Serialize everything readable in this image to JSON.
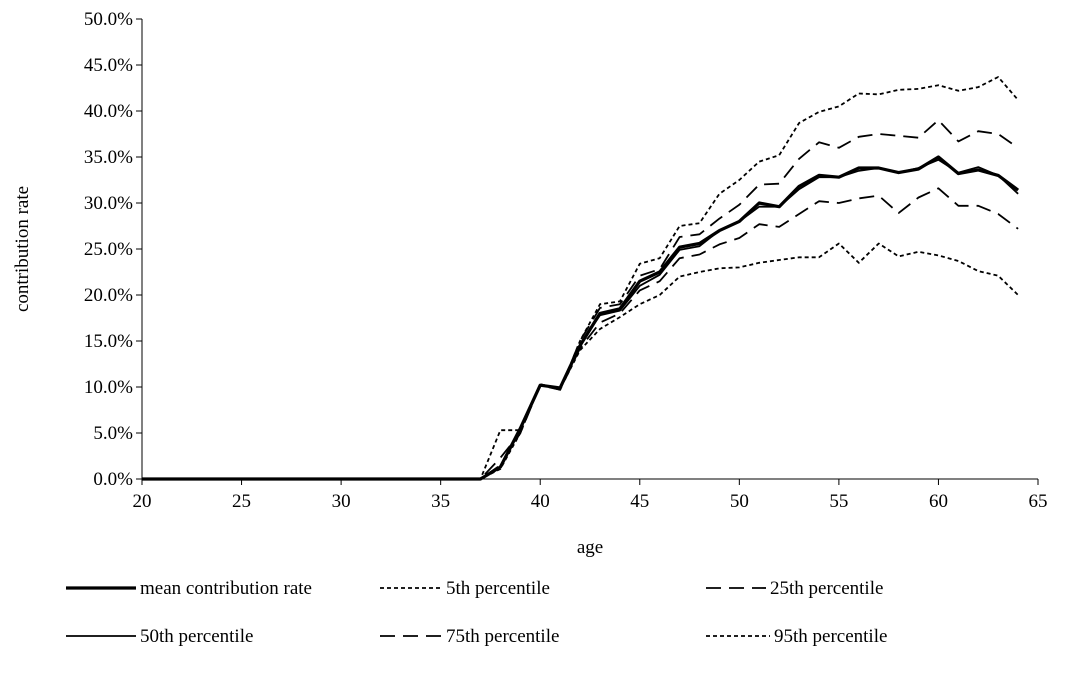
{
  "chart_data": {
    "type": "line",
    "title": "",
    "xlabel": "age",
    "ylabel": "contribution rate",
    "xlim": [
      20,
      65
    ],
    "ylim": [
      0,
      0.5
    ],
    "x_ticks": [
      20,
      25,
      30,
      35,
      40,
      45,
      50,
      55,
      60,
      65
    ],
    "x_tick_labels": [
      "20",
      "25",
      "30",
      "35",
      "40",
      "45",
      "50",
      "55",
      "60",
      "65"
    ],
    "y_ticks": [
      0,
      0.05,
      0.1,
      0.15,
      0.2,
      0.25,
      0.3,
      0.35,
      0.4,
      0.45,
      0.5
    ],
    "y_tick_labels": [
      "0.0%",
      "5.0%",
      "10.0%",
      "15.0%",
      "20.0%",
      "25.0%",
      "30.0%",
      "35.0%",
      "40.0%",
      "45.0%",
      "50.0%"
    ],
    "grid": false,
    "legend_position": "bottom",
    "x": [
      20,
      21,
      22,
      23,
      24,
      25,
      26,
      27,
      28,
      29,
      30,
      31,
      32,
      33,
      34,
      35,
      36,
      37,
      38,
      39,
      40,
      41,
      42,
      43,
      44,
      45,
      46,
      47,
      48,
      49,
      50,
      51,
      52,
      53,
      54,
      55,
      56,
      57,
      58,
      59,
      60,
      61,
      62,
      63,
      64
    ],
    "series": [
      {
        "name": "mean contribution rate",
        "style": "solid-thick",
        "values": [
          0,
          0,
          0,
          0,
          0,
          0,
          0,
          0,
          0,
          0,
          0,
          0,
          0,
          0,
          0,
          0,
          0,
          0,
          0.013,
          0.055,
          0.102,
          0.099,
          0.145,
          0.18,
          0.185,
          0.215,
          0.225,
          0.252,
          0.256,
          0.27,
          0.28,
          0.3,
          0.296,
          0.318,
          0.33,
          0.328,
          0.338,
          0.338,
          0.333,
          0.337,
          0.35,
          0.332,
          0.336,
          0.33,
          0.314
        ]
      },
      {
        "name": "5th percentile",
        "style": "short-dash",
        "values": [
          0,
          0,
          0,
          0,
          0,
          0,
          0,
          0,
          0,
          0,
          0,
          0,
          0,
          0,
          0,
          0,
          0,
          0,
          0.053,
          0.053,
          0.103,
          0.098,
          0.14,
          0.163,
          0.176,
          0.19,
          0.2,
          0.22,
          0.225,
          0.229,
          0.23,
          0.235,
          0.238,
          0.241,
          0.241,
          0.256,
          0.235,
          0.256,
          0.242,
          0.247,
          0.243,
          0.237,
          0.226,
          0.221,
          0.2
        ]
      },
      {
        "name": "25th percentile",
        "style": "long-dash",
        "values": [
          0,
          0,
          0,
          0,
          0,
          0,
          0,
          0,
          0,
          0,
          0,
          0,
          0,
          0,
          0,
          0,
          0,
          0,
          0.023,
          0.05,
          0.102,
          0.097,
          0.142,
          0.17,
          0.18,
          0.205,
          0.215,
          0.24,
          0.244,
          0.255,
          0.262,
          0.277,
          0.274,
          0.288,
          0.302,
          0.3,
          0.305,
          0.308,
          0.289,
          0.306,
          0.316,
          0.297,
          0.297,
          0.288,
          0.272
        ]
      },
      {
        "name": "50th percentile",
        "style": "solid-thin",
        "values": [
          0,
          0,
          0,
          0,
          0,
          0,
          0,
          0,
          0,
          0,
          0,
          0,
          0,
          0,
          0,
          0,
          0,
          0,
          0.013,
          0.055,
          0.102,
          0.098,
          0.146,
          0.178,
          0.183,
          0.21,
          0.222,
          0.249,
          0.253,
          0.27,
          0.28,
          0.296,
          0.296,
          0.315,
          0.328,
          0.328,
          0.335,
          0.338,
          0.333,
          0.338,
          0.347,
          0.333,
          0.339,
          0.33,
          0.31
        ]
      },
      {
        "name": "75th percentile",
        "style": "long-dash",
        "values": [
          0,
          0,
          0,
          0,
          0,
          0,
          0,
          0,
          0,
          0,
          0,
          0,
          0,
          0,
          0,
          0,
          0,
          0,
          0.015,
          0.05,
          0.103,
          0.097,
          0.15,
          0.186,
          0.19,
          0.221,
          0.228,
          0.263,
          0.266,
          0.283,
          0.298,
          0.32,
          0.321,
          0.348,
          0.366,
          0.36,
          0.372,
          0.375,
          0.373,
          0.371,
          0.39,
          0.367,
          0.378,
          0.375,
          0.36
        ]
      },
      {
        "name": "95th percentile",
        "style": "short-dash",
        "values": [
          0,
          0,
          0,
          0,
          0,
          0,
          0,
          0,
          0,
          0,
          0,
          0,
          0,
          0,
          0,
          0,
          0,
          0,
          0.011,
          0.05,
          0.103,
          0.097,
          0.15,
          0.19,
          0.193,
          0.234,
          0.24,
          0.275,
          0.278,
          0.31,
          0.325,
          0.345,
          0.352,
          0.387,
          0.399,
          0.405,
          0.419,
          0.418,
          0.423,
          0.424,
          0.428,
          0.422,
          0.426,
          0.437,
          0.412
        ]
      }
    ]
  }
}
